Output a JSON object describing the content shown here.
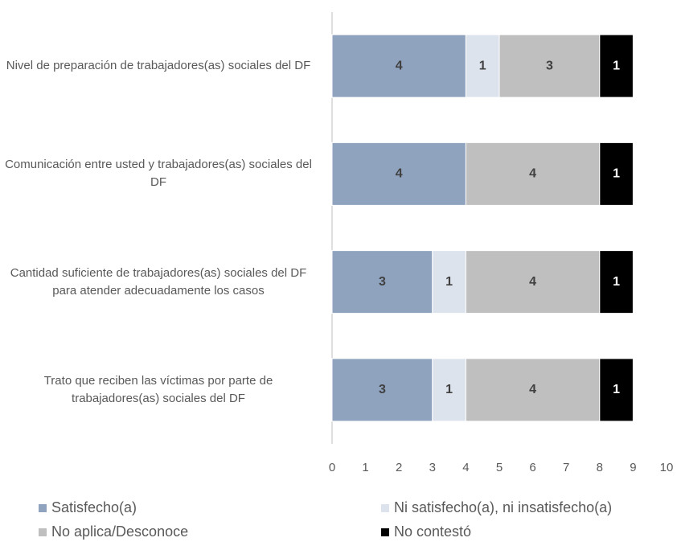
{
  "chart_data": {
    "type": "stacked-barh",
    "categories": [
      "Nivel de preparación de trabajadores(as) sociales del DF",
      "Comunicación entre usted y trabajadores(as) sociales del DF",
      "Cantidad suficiente de trabajadores(as) sociales del DF para atender adecuadamente los casos",
      "Trato que reciben las víctimas por parte de trabajadores(as) sociales del DF"
    ],
    "series": [
      {
        "name": "Satisfecho(a)",
        "color": "#8fa3bf",
        "values": [
          4,
          4,
          3,
          3
        ]
      },
      {
        "name": "Ni satisfecho(a), ni insatisfecho(a)",
        "color": "#dce3ed",
        "values": [
          1,
          0,
          1,
          1
        ]
      },
      {
        "name": "No aplica/Desconoce",
        "color": "#bfbfbf",
        "values": [
          3,
          4,
          4,
          4
        ]
      },
      {
        "name": "No contestó",
        "color": "#000000",
        "values": [
          1,
          1,
          1,
          1
        ]
      }
    ],
    "xlim": [
      0,
      10
    ],
    "xticks": [
      0,
      1,
      2,
      3,
      4,
      5,
      6,
      7,
      8,
      9,
      10
    ],
    "legend": "bottom"
  }
}
